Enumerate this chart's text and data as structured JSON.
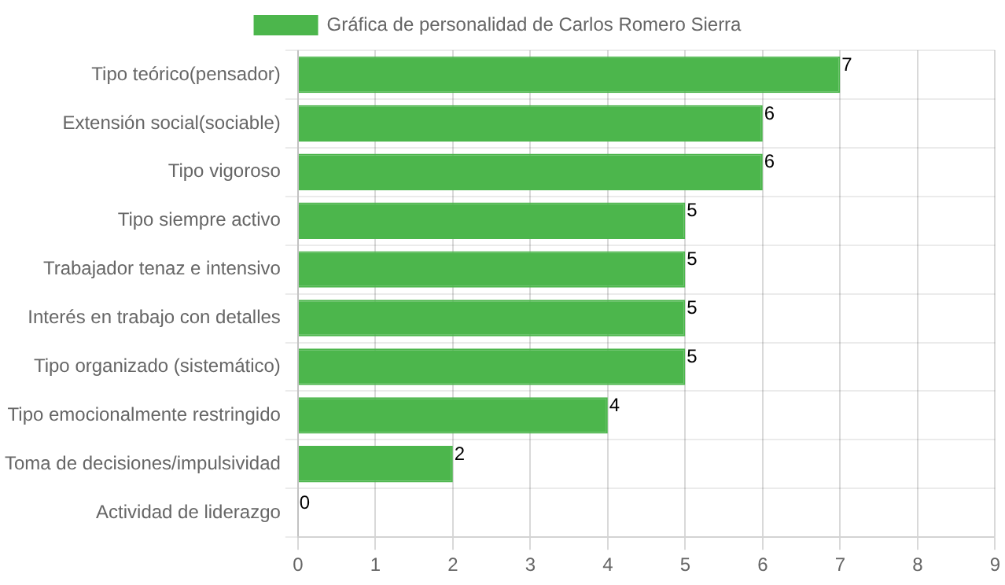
{
  "chart_data": {
    "type": "bar",
    "orientation": "horizontal",
    "categories": [
      "Tipo teórico(pensador)",
      "Extensión social(sociable)",
      "Tipo vigoroso",
      "Tipo siempre activo",
      "Trabajador tenaz e intensivo",
      "Interés en trabajo con detalles",
      "Tipo organizado (sistemático)",
      "Tipo emocionalmente restringido",
      "Toma de decisiones/impulsividad",
      "Actividad de liderazgo"
    ],
    "series": [
      {
        "name": "Gráfica de personalidad de Carlos Romero Sierra",
        "color": "#4cb64c",
        "values": [
          7,
          6,
          6,
          5,
          5,
          5,
          5,
          4,
          2,
          0
        ]
      }
    ],
    "xlim": [
      0,
      9
    ],
    "xticks": [
      0,
      1,
      2,
      3,
      4,
      5,
      6,
      7,
      8,
      9
    ],
    "grid": true,
    "legend": "top",
    "data_labels": true
  }
}
